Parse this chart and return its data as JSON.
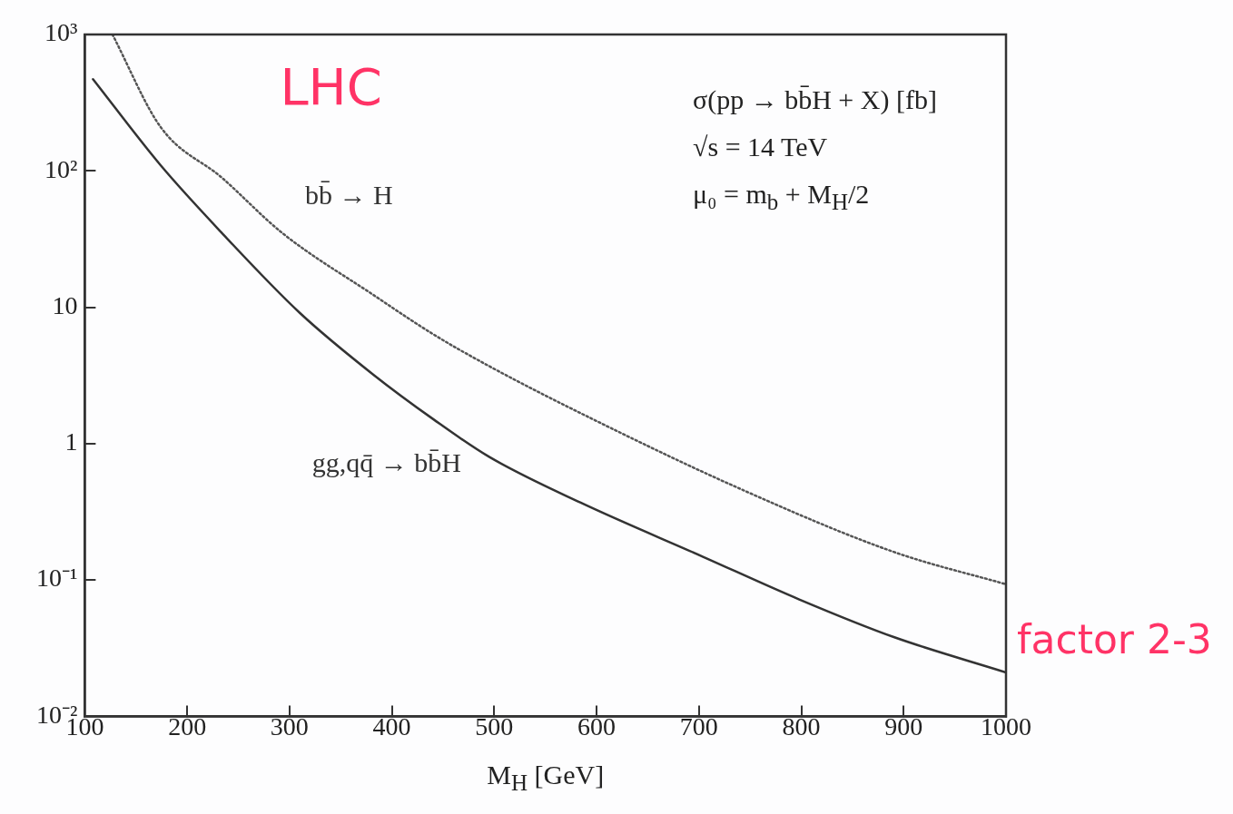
{
  "chart_data": {
    "type": "line",
    "xlabel": "M$_{H}$ [GeV]",
    "xlim": [
      100,
      1000
    ],
    "xticks": [
      100,
      200,
      300,
      400,
      500,
      600,
      700,
      800,
      900,
      1000
    ],
    "ylim": [
      0.01,
      1000
    ],
    "yticks": [
      {
        "value": 0.01,
        "label": "10⁻²"
      },
      {
        "value": 0.1,
        "label": "10⁻¹"
      },
      {
        "value": 1,
        "label": "1"
      },
      {
        "value": 10,
        "label": "10"
      },
      {
        "value": 100,
        "label": "10²"
      },
      {
        "value": 1000,
        "label": "10³"
      }
    ],
    "log": "y",
    "grid": false,
    "legend": false,
    "marker": "none",
    "series": [
      {
        "name": "bb̄ → H",
        "color": "#555555",
        "line_style": "dotted",
        "x": [
          127,
          174,
          234,
          293,
          382,
          441,
          495,
          591,
          742,
          891,
          1000
        ],
        "values": [
          1000,
          210,
          89,
          35,
          12.3,
          6.3,
          3.7,
          1.58,
          0.46,
          0.16,
          0.093
        ]
      },
      {
        "name": "gg,qq̄ → bb̄H",
        "color": "#333333",
        "line_style": "solid",
        "x": [
          108,
          174,
          234,
          310,
          382,
          441,
          495,
          584,
          704,
          798,
          891,
          1000
        ],
        "values": [
          470,
          110,
          35,
          9.1,
          3.2,
          1.5,
          0.8,
          0.37,
          0.148,
          0.072,
          0.038,
          0.021
        ]
      }
    ],
    "annotations": [
      "σ(pp → bb̄H + X) [fb]",
      "√s = 14 TeV",
      "μ₀ = m$_{b}$ + M$_{H}$/2",
      "LHC",
      "factor 2-3"
    ]
  }
}
